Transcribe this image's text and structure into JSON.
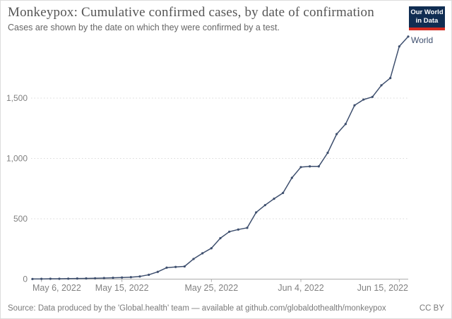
{
  "header": {
    "title": "Monkeypox: Cumulative confirmed cases, by date of confirmation",
    "subtitle": "Cases are shown by the date on which they were confirmed by a test.",
    "logo": {
      "line1": "Our World",
      "line2": "in Data"
    }
  },
  "footer": {
    "source": "Source: Data produced by the 'Global.health' team — available at github.com/globaldothealth/monkeypox",
    "license": "CC BY"
  },
  "colors": {
    "line": "#3e4f6e",
    "entity_label": "#3e4f6e",
    "logo_bg": "#102d52",
    "logo_stripe": "#d42b21",
    "grid": "#d8d8d8",
    "axis": "#adadad",
    "tick_label": "#818181",
    "title": "#555555",
    "subtitle": "#666666",
    "footer": "#7a7a7a"
  },
  "chart_data": {
    "type": "line",
    "title": "Monkeypox: Cumulative confirmed cases, by date of confirmation",
    "subtitle": "Cases are shown by the date on which they were confirmed by a test.",
    "xlabel": "",
    "ylabel": "",
    "grid": "horizontal-dotted",
    "legend_position": "end-of-line",
    "ylim": [
      0,
      2050
    ],
    "y_ticks": [
      0,
      500,
      1000,
      1500
    ],
    "y_tick_labels": [
      "0",
      "500",
      "1,000",
      "1,500"
    ],
    "x_tick_labels": [
      "May 6, 2022",
      "May 15, 2022",
      "May 25, 2022",
      "Jun 4, 2022",
      "Jun 15, 2022"
    ],
    "x_tick_indices": [
      1,
      10,
      20,
      30,
      41
    ],
    "series": [
      {
        "name": "World",
        "dates": [
          "2022-05-05",
          "2022-05-06",
          "2022-05-07",
          "2022-05-08",
          "2022-05-09",
          "2022-05-10",
          "2022-05-11",
          "2022-05-12",
          "2022-05-13",
          "2022-05-14",
          "2022-05-15",
          "2022-05-16",
          "2022-05-17",
          "2022-05-18",
          "2022-05-19",
          "2022-05-20",
          "2022-05-21",
          "2022-05-22",
          "2022-05-23",
          "2022-05-24",
          "2022-05-25",
          "2022-05-26",
          "2022-05-27",
          "2022-05-28",
          "2022-05-29",
          "2022-05-30",
          "2022-05-31",
          "2022-06-01",
          "2022-06-02",
          "2022-06-03",
          "2022-06-04",
          "2022-06-05",
          "2022-06-06",
          "2022-06-07",
          "2022-06-08",
          "2022-06-09",
          "2022-06-10",
          "2022-06-11",
          "2022-06-12",
          "2022-06-13",
          "2022-06-14",
          "2022-06-15",
          "2022-06-16"
        ],
        "values": [
          1,
          2,
          3,
          3,
          4,
          5,
          6,
          7,
          9,
          11,
          13,
          16,
          22,
          36,
          60,
          95,
          101,
          105,
          167,
          214,
          256,
          339,
          393,
          411,
          425,
          553,
          613,
          666,
          714,
          839,
          928,
          934,
          934,
          1047,
          1202,
          1285,
          1440,
          1488,
          1510,
          1606,
          1666,
          1928,
          2010
        ]
      }
    ]
  }
}
